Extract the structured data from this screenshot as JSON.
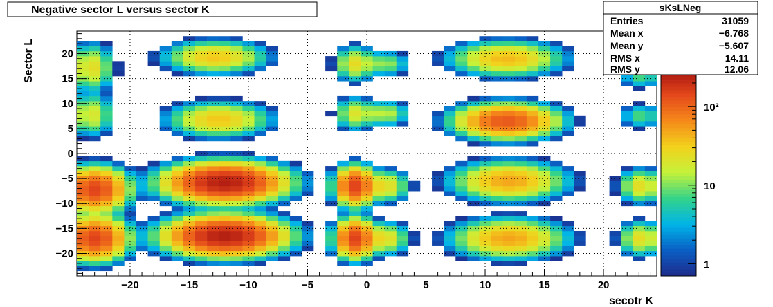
{
  "chart_data": {
    "type": "heatmap",
    "title": "Negative sector L versus sector K",
    "xlabel": "secotr K",
    "ylabel": "Sector L",
    "xlim": [
      -24.5,
      24.5
    ],
    "ylim": [
      -24.5,
      24.5
    ],
    "bin_width": 1,
    "x_ticks": [
      "−20",
      "−15",
      "−10",
      "−5",
      "0",
      "5",
      "10",
      "15",
      "20"
    ],
    "x_tick_values": [
      -20,
      -15,
      -10,
      -5,
      0,
      5,
      10,
      15,
      20
    ],
    "y_ticks": [
      "20",
      "15",
      "10",
      "5",
      "0",
      "−5",
      "−10",
      "−15",
      "−20"
    ],
    "y_tick_values": [
      20,
      15,
      10,
      5,
      0,
      -5,
      -10,
      -15,
      -20
    ],
    "z_scale": "log",
    "zlim": [
      0.7,
      300
    ],
    "z_ticks": [
      "1",
      "10",
      "10²"
    ],
    "z_tick_values": [
      1,
      10,
      100
    ],
    "grid": true,
    "palette": [
      "#1d2a8a",
      "#0a5fc4",
      "#00b4e8",
      "#33d38a",
      "#c6f23a",
      "#f2d21c",
      "#f58a1a",
      "#e5481b",
      "#a3120f"
    ],
    "legend": {
      "title": "sKsLNeg",
      "entries_label": "Entries",
      "entries": "31059",
      "mean_x_label": "Mean x",
      "mean_x": "−6.768",
      "mean_y_label": "Mean y",
      "mean_y": "−5.607",
      "rms_x_label": "RMS x",
      "rms_x": "14.11",
      "rms_y_label": "RMS y",
      "rms_y": "12.06"
    },
    "clusters": [
      {
        "xc": -23.3,
        "yc": 17.2,
        "sx": 0.9,
        "sy": 2.2,
        "peak": 25
      },
      {
        "xc": -23.3,
        "yc": 7.8,
        "sx": 0.9,
        "sy": 2.0,
        "peak": 20
      },
      {
        "xc": -23.0,
        "yc": -7.2,
        "sx": 1.3,
        "sy": 2.0,
        "peak": 150
      },
      {
        "xc": -23.0,
        "yc": -17.0,
        "sx": 1.3,
        "sy": 2.0,
        "peak": 150
      },
      {
        "xc": -12.8,
        "yc": 19.3,
        "sx": 2.0,
        "sy": 1.5,
        "peak": 35
      },
      {
        "xc": -12.5,
        "yc": 6.8,
        "sx": 2.0,
        "sy": 1.6,
        "peak": 35
      },
      {
        "xc": -12.0,
        "yc": -5.8,
        "sx": 2.3,
        "sy": 1.8,
        "peak": 250
      },
      {
        "xc": -12.0,
        "yc": -16.5,
        "sx": 2.3,
        "sy": 1.8,
        "peak": 250
      },
      {
        "xc": -1.0,
        "yc": 18.0,
        "sx": 0.8,
        "sy": 1.6,
        "peak": 25
      },
      {
        "xc": -1.0,
        "yc": 8.0,
        "sx": 0.8,
        "sy": 1.5,
        "peak": 20
      },
      {
        "xc": -1.0,
        "yc": -6.5,
        "sx": 0.8,
        "sy": 1.8,
        "peak": 150
      },
      {
        "xc": -1.0,
        "yc": -17.0,
        "sx": 0.8,
        "sy": 1.8,
        "peak": 150
      },
      {
        "xc": 1.5,
        "yc": 18.0,
        "sx": 1.0,
        "sy": 1.2,
        "peak": 12
      },
      {
        "xc": 1.5,
        "yc": 8.0,
        "sx": 1.0,
        "sy": 1.2,
        "peak": 15
      },
      {
        "xc": 1.5,
        "yc": -6.5,
        "sx": 1.0,
        "sy": 1.5,
        "peak": 25
      },
      {
        "xc": 1.5,
        "yc": -17.0,
        "sx": 1.0,
        "sy": 1.5,
        "peak": 25
      },
      {
        "xc": 11.8,
        "yc": 19.0,
        "sx": 2.2,
        "sy": 1.6,
        "peak": 40
      },
      {
        "xc": 11.8,
        "yc": 6.5,
        "sx": 2.0,
        "sy": 1.6,
        "peak": 120
      },
      {
        "xc": 12.0,
        "yc": -5.5,
        "sx": 2.2,
        "sy": 1.8,
        "peak": 50
      },
      {
        "xc": 12.0,
        "yc": -17.0,
        "sx": 2.2,
        "sy": 1.8,
        "peak": 50
      },
      {
        "xc": 23.2,
        "yc": 15.5,
        "sx": 0.9,
        "sy": 1.2,
        "peak": 8
      },
      {
        "xc": 23.2,
        "yc": 7.5,
        "sx": 0.9,
        "sy": 1.2,
        "peak": 8
      },
      {
        "xc": 23.2,
        "yc": -6.5,
        "sx": 0.9,
        "sy": 1.6,
        "peak": 25
      },
      {
        "xc": 23.2,
        "yc": -17.0,
        "sx": 0.9,
        "sy": 1.6,
        "peak": 25
      }
    ],
    "cutoff": 0.8
  }
}
